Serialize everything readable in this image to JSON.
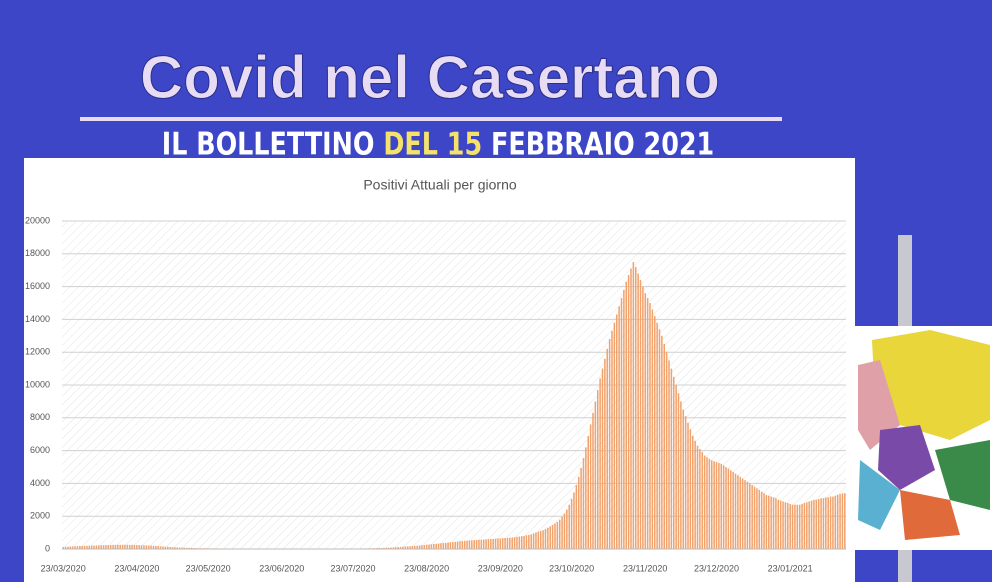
{
  "header": {
    "title": "Covid nel Casertano",
    "subtitle": [
      "IL BOLLETTINO",
      "DEL 15",
      "FEBBRAIO 2021"
    ]
  },
  "chart_data": {
    "type": "bar",
    "title": "Positivi Attuali per giorno",
    "color": "#f2a26c",
    "grid": true,
    "ylim": [
      0,
      20000
    ],
    "yticks": [
      0,
      2000,
      4000,
      6000,
      8000,
      10000,
      12000,
      14000,
      16000,
      18000,
      20000
    ],
    "categories": [
      "23/03/2020",
      null,
      null,
      null,
      null,
      null,
      null,
      null,
      null,
      null,
      null,
      null,
      null,
      null,
      null,
      null,
      null,
      null,
      null,
      null,
      null,
      null,
      null,
      null,
      null,
      null,
      null,
      null,
      null,
      null,
      null,
      "23/04/2020",
      null,
      null,
      null,
      null,
      null,
      null,
      null,
      null,
      null,
      null,
      null,
      null,
      null,
      null,
      null,
      null,
      null,
      null,
      null,
      null,
      null,
      null,
      null,
      null,
      null,
      null,
      null,
      null,
      null,
      "23/05/2020",
      null,
      null,
      null,
      null,
      null,
      null,
      null,
      null,
      null,
      null,
      null,
      null,
      null,
      null,
      null,
      null,
      null,
      null,
      null,
      null,
      null,
      null,
      null,
      null,
      null,
      null,
      null,
      null,
      null,
      null,
      "23/06/2020",
      null,
      null,
      null,
      null,
      null,
      null,
      null,
      null,
      null,
      null,
      null,
      null,
      null,
      null,
      null,
      null,
      null,
      null,
      null,
      null,
      null,
      null,
      null,
      null,
      null,
      null,
      null,
      null,
      null,
      "23/07/2020",
      null,
      null,
      null,
      null,
      null,
      null,
      null,
      null,
      null,
      null,
      null,
      null,
      null,
      null,
      null,
      null,
      null,
      null,
      null,
      null,
      null,
      null,
      null,
      null,
      null,
      null,
      null,
      null,
      null,
      null,
      "23/08/2020",
      null,
      null,
      null,
      null,
      null,
      null,
      null,
      null,
      null,
      null,
      null,
      null,
      null,
      null,
      null,
      null,
      null,
      null,
      null,
      null,
      null,
      null,
      null,
      null,
      null,
      null,
      null,
      null,
      null,
      null,
      "23/09/2020",
      null,
      null,
      null,
      null,
      null,
      null,
      null,
      null,
      null,
      null,
      null,
      null,
      null,
      null,
      null,
      null,
      null,
      null,
      null,
      null,
      null,
      null,
      null,
      null,
      null,
      null,
      null,
      null,
      null,
      "23/10/2020",
      null,
      null,
      null,
      null,
      null,
      null,
      null,
      null,
      null,
      null,
      null,
      null,
      null,
      null,
      null,
      null,
      null,
      null,
      null,
      null,
      null,
      null,
      null,
      null,
      null,
      null,
      null,
      null,
      null,
      null,
      "23/11/2020",
      null,
      null,
      null,
      null,
      null,
      null,
      null,
      null,
      null,
      null,
      null,
      null,
      null,
      null,
      null,
      null,
      null,
      null,
      null,
      null,
      null,
      null,
      null,
      null,
      null,
      null,
      null,
      null,
      null,
      "23/12/2020",
      null,
      null,
      null,
      null,
      null,
      null,
      null,
      null,
      null,
      null,
      null,
      null,
      null,
      null,
      null,
      null,
      null,
      null,
      null,
      null,
      null,
      null,
      null,
      null,
      null,
      null,
      null,
      null,
      null,
      null,
      "23/01/2021",
      null,
      null,
      null,
      null,
      null,
      null,
      null,
      null,
      null,
      null,
      null,
      null,
      null,
      null,
      null,
      null,
      null,
      null,
      null,
      null,
      null,
      null,
      null
    ],
    "values": [
      120,
      130,
      140,
      150,
      160,
      170,
      175,
      180,
      185,
      190,
      195,
      200,
      205,
      210,
      215,
      220,
      225,
      230,
      235,
      240,
      245,
      250,
      250,
      255,
      255,
      260,
      260,
      255,
      255,
      250,
      245,
      240,
      235,
      230,
      225,
      220,
      215,
      205,
      195,
      185,
      175,
      165,
      155,
      145,
      135,
      125,
      115,
      105,
      95,
      90,
      85,
      80,
      75,
      70,
      65,
      60,
      55,
      50,
      48,
      46,
      44,
      42,
      40,
      38,
      36,
      35,
      34,
      33,
      32,
      31,
      30,
      30,
      30,
      30,
      30,
      30,
      30,
      30,
      30,
      30,
      30,
      30,
      30,
      30,
      30,
      30,
      30,
      30,
      30,
      30,
      28,
      28,
      28,
      28,
      28,
      28,
      28,
      28,
      28,
      28,
      26,
      26,
      26,
      26,
      26,
      26,
      26,
      26,
      26,
      26,
      25,
      25,
      25,
      25,
      25,
      25,
      25,
      25,
      25,
      25,
      25,
      26,
      27,
      28,
      30,
      32,
      34,
      36,
      38,
      40,
      45,
      50,
      55,
      60,
      65,
      70,
      75,
      80,
      90,
      100,
      110,
      120,
      130,
      140,
      150,
      160,
      170,
      180,
      190,
      200,
      215,
      230,
      245,
      260,
      275,
      290,
      305,
      320,
      335,
      350,
      365,
      380,
      395,
      410,
      425,
      440,
      455,
      470,
      485,
      500,
      510,
      520,
      530,
      540,
      550,
      560,
      570,
      580,
      590,
      600,
      610,
      620,
      630,
      640,
      650,
      660,
      670,
      680,
      690,
      700,
      720,
      740,
      760,
      780,
      800,
      830,
      860,
      900,
      950,
      1000,
      1050,
      1100,
      1150,
      1220,
      1300,
      1380,
      1460,
      1550,
      1650,
      1780,
      1950,
      2150,
      2400,
      2700,
      3050,
      3450,
      3900,
      4400,
      4950,
      5550,
      6200,
      6900,
      7600,
      8300,
      9000,
      9700,
      10400,
      11000,
      11600,
      12200,
      12800,
      13300,
      13800,
      14300,
      14800,
      15300,
      15800,
      16300,
      16700,
      17100,
      17500,
      17200,
      16800,
      16400,
      16000,
      15600,
      15300,
      15000,
      14600,
      14200,
      13800,
      13400,
      13000,
      12500,
      12000,
      11500,
      11000,
      10500,
      10000,
      9500,
      9000,
      8500,
      8100,
      7700,
      7300,
      6900,
      6600,
      6300,
      6100,
      5900,
      5700,
      5600,
      5500,
      5400,
      5350,
      5300,
      5250,
      5200,
      5100,
      5000,
      4900,
      4800,
      4700,
      4600,
      4500,
      4400,
      4300,
      4200,
      4100,
      4000,
      3900,
      3800,
      3700,
      3600,
      3500,
      3400,
      3300,
      3250,
      3200,
      3150,
      3100,
      3000,
      2950,
      2900,
      2850,
      2800,
      2750,
      2700,
      2700,
      2700,
      2700,
      2750,
      2800,
      2850,
      2900,
      2950,
      3000,
      3000,
      3050,
      3100,
      3100,
      3150,
      3150,
      3200,
      3200,
      3250,
      3300,
      3350,
      3400,
      3400
    ]
  }
}
